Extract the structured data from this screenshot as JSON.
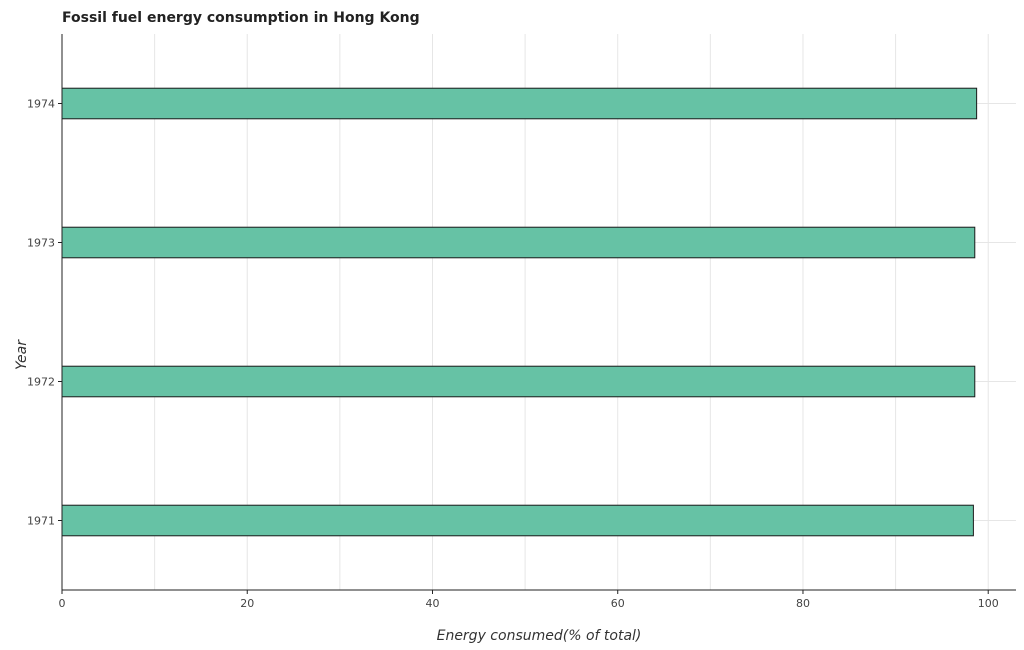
{
  "chart_data": {
    "type": "bar",
    "orientation": "horizontal",
    "title": "Fossil fuel energy consumption in Hong Kong",
    "xlabel": "Energy consumed(% of total)",
    "ylabel": "Year",
    "categories": [
      "1971",
      "1972",
      "1973",
      "1974"
    ],
    "values": [
      98.4,
      98.55,
      98.55,
      98.75
    ],
    "xlim": [
      0,
      103
    ],
    "xticks": [
      0,
      20,
      40,
      60,
      80,
      100
    ],
    "xtick_labels": [
      "0",
      "20",
      "40",
      "60",
      "80",
      "100"
    ],
    "grid": true,
    "bar_color": "#66c2a5",
    "bar_edge_color": "#1a1a1a",
    "grid_color": "#e6e6e6"
  }
}
